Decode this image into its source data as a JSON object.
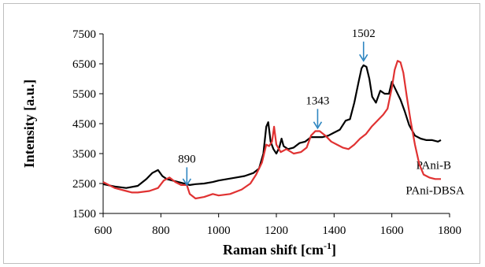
{
  "chart_data": {
    "type": "line",
    "title": "",
    "xlabel": "Raman shift [cm",
    "xlabel_sup": "-1",
    "xlabel_suffix": "]",
    "ylabel": "Intensity [a.u.]",
    "xlim": [
      600,
      1800
    ],
    "ylim": [
      1500,
      7500
    ],
    "xticks": [
      600,
      800,
      1000,
      1200,
      1400,
      1600,
      1800
    ],
    "yticks": [
      1500,
      2500,
      3500,
      4500,
      5500,
      6500,
      7500
    ],
    "grid": false,
    "annotations": [
      {
        "text": "890",
        "x": 890,
        "y": 2450,
        "text_y": 3200
      },
      {
        "text": "1343",
        "x": 1343,
        "y": 4350,
        "text_y": 5150
      },
      {
        "text": "1502",
        "x": 1502,
        "y": 6600,
        "text_y": 7400
      }
    ],
    "annotation_color": "#2e86c1",
    "series": [
      {
        "name": "PAni-B",
        "label_x": 1745,
        "label_y": 2990,
        "color": "#000000",
        "points": [
          [
            600,
            2480
          ],
          [
            640,
            2400
          ],
          [
            680,
            2350
          ],
          [
            720,
            2420
          ],
          [
            750,
            2650
          ],
          [
            770,
            2850
          ],
          [
            790,
            2950
          ],
          [
            805,
            2750
          ],
          [
            820,
            2650
          ],
          [
            840,
            2600
          ],
          [
            860,
            2550
          ],
          [
            880,
            2500
          ],
          [
            900,
            2450
          ],
          [
            920,
            2480
          ],
          [
            950,
            2500
          ],
          [
            980,
            2550
          ],
          [
            1000,
            2600
          ],
          [
            1030,
            2650
          ],
          [
            1060,
            2700
          ],
          [
            1090,
            2750
          ],
          [
            1120,
            2850
          ],
          [
            1140,
            3000
          ],
          [
            1155,
            3500
          ],
          [
            1165,
            4400
          ],
          [
            1172,
            4550
          ],
          [
            1180,
            3900
          ],
          [
            1190,
            3650
          ],
          [
            1200,
            3500
          ],
          [
            1210,
            3700
          ],
          [
            1218,
            4000
          ],
          [
            1225,
            3750
          ],
          [
            1240,
            3650
          ],
          [
            1260,
            3700
          ],
          [
            1280,
            3850
          ],
          [
            1300,
            3900
          ],
          [
            1320,
            4050
          ],
          [
            1343,
            4050
          ],
          [
            1360,
            4050
          ],
          [
            1380,
            4100
          ],
          [
            1400,
            4200
          ],
          [
            1420,
            4300
          ],
          [
            1430,
            4450
          ],
          [
            1440,
            4600
          ],
          [
            1455,
            4650
          ],
          [
            1470,
            5200
          ],
          [
            1485,
            5900
          ],
          [
            1495,
            6350
          ],
          [
            1502,
            6450
          ],
          [
            1512,
            6400
          ],
          [
            1522,
            6000
          ],
          [
            1532,
            5400
          ],
          [
            1545,
            5200
          ],
          [
            1560,
            5600
          ],
          [
            1575,
            5500
          ],
          [
            1590,
            5500
          ],
          [
            1600,
            5900
          ],
          [
            1615,
            5600
          ],
          [
            1630,
            5300
          ],
          [
            1645,
            4900
          ],
          [
            1660,
            4450
          ],
          [
            1680,
            4100
          ],
          [
            1700,
            4000
          ],
          [
            1720,
            3950
          ],
          [
            1740,
            3950
          ],
          [
            1760,
            3900
          ],
          [
            1770,
            3950
          ]
        ]
      },
      {
        "name": "PAni-DBSA",
        "label_x": 1750,
        "label_y": 2150,
        "color": "#e03232",
        "points": [
          [
            600,
            2550
          ],
          [
            640,
            2350
          ],
          [
            680,
            2250
          ],
          [
            700,
            2200
          ],
          [
            720,
            2200
          ],
          [
            760,
            2250
          ],
          [
            790,
            2350
          ],
          [
            810,
            2600
          ],
          [
            830,
            2700
          ],
          [
            850,
            2550
          ],
          [
            870,
            2450
          ],
          [
            890,
            2450
          ],
          [
            900,
            2150
          ],
          [
            920,
            2000
          ],
          [
            950,
            2050
          ],
          [
            980,
            2150
          ],
          [
            1000,
            2100
          ],
          [
            1040,
            2150
          ],
          [
            1080,
            2300
          ],
          [
            1110,
            2500
          ],
          [
            1130,
            2800
          ],
          [
            1150,
            3200
          ],
          [
            1165,
            3800
          ],
          [
            1175,
            3750
          ],
          [
            1185,
            3900
          ],
          [
            1192,
            4400
          ],
          [
            1200,
            3800
          ],
          [
            1215,
            3550
          ],
          [
            1235,
            3650
          ],
          [
            1260,
            3500
          ],
          [
            1285,
            3550
          ],
          [
            1305,
            3700
          ],
          [
            1320,
            4100
          ],
          [
            1335,
            4250
          ],
          [
            1350,
            4250
          ],
          [
            1370,
            4100
          ],
          [
            1390,
            3900
          ],
          [
            1410,
            3800
          ],
          [
            1430,
            3700
          ],
          [
            1450,
            3650
          ],
          [
            1470,
            3800
          ],
          [
            1490,
            4000
          ],
          [
            1510,
            4150
          ],
          [
            1530,
            4400
          ],
          [
            1550,
            4600
          ],
          [
            1570,
            4800
          ],
          [
            1585,
            5000
          ],
          [
            1600,
            5700
          ],
          [
            1610,
            6300
          ],
          [
            1620,
            6600
          ],
          [
            1630,
            6550
          ],
          [
            1640,
            6200
          ],
          [
            1652,
            5400
          ],
          [
            1665,
            4600
          ],
          [
            1680,
            3800
          ],
          [
            1695,
            3150
          ],
          [
            1710,
            2800
          ],
          [
            1730,
            2700
          ],
          [
            1750,
            2650
          ],
          [
            1770,
            2650
          ]
        ]
      }
    ]
  }
}
